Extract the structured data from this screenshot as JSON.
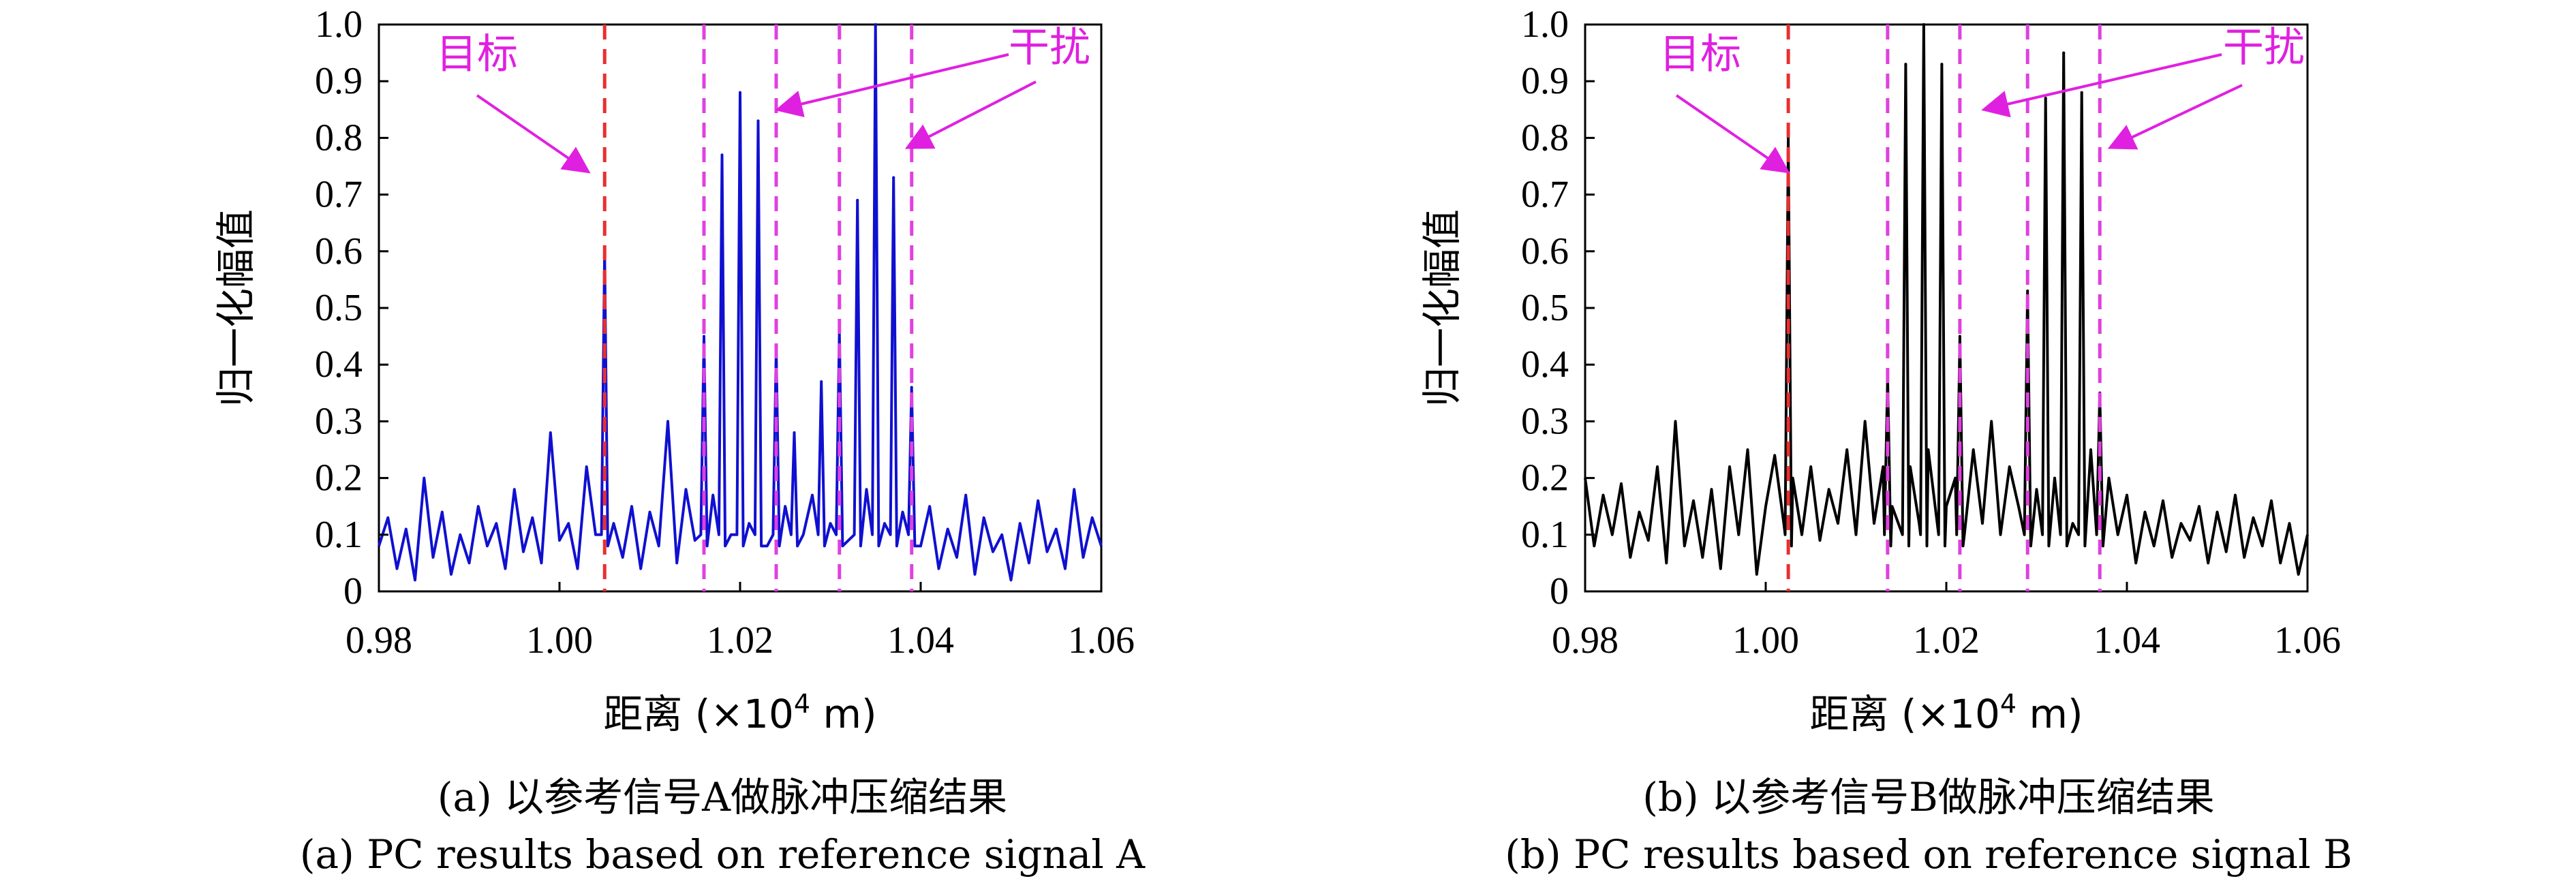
{
  "chart_data": [
    {
      "type": "line",
      "panel_id": "a",
      "caption_cn": "(a) 以参考信号A做脉冲压缩结果",
      "caption_en": "(a) PC results based on reference signal A",
      "xlabel_main": "距离 (×10",
      "xlabel_exp": "4",
      "xlabel_unit": " m)",
      "ylabel": "归一化幅值",
      "xlim": [
        0.98,
        1.06
      ],
      "ylim": [
        0,
        1.0
      ],
      "xticks": [
        "0.98",
        "1.00",
        "1.02",
        "1.04",
        "1.06"
      ],
      "yticks": [
        "0",
        "0.1",
        "0.2",
        "0.3",
        "0.4",
        "0.5",
        "0.6",
        "0.7",
        "0.8",
        "0.9",
        "1.0"
      ],
      "series_color": "#1010d0",
      "target_line": 1.005,
      "target_color": "#e83030",
      "jamming_lines": [
        1.016,
        1.024,
        1.031,
        1.039
      ],
      "jamming_color": "#e040e0",
      "annotation_target": "目标",
      "annotation_jamming": "干扰",
      "annotation_color": "#e020e0",
      "peaks": [
        {
          "x": 1.005,
          "y": 0.6
        },
        {
          "x": 1.016,
          "y": 0.45
        },
        {
          "x": 1.018,
          "y": 0.77
        },
        {
          "x": 1.02,
          "y": 0.88
        },
        {
          "x": 1.022,
          "y": 0.83
        },
        {
          "x": 1.024,
          "y": 0.43
        },
        {
          "x": 1.026,
          "y": 0.28
        },
        {
          "x": 1.029,
          "y": 0.37
        },
        {
          "x": 1.031,
          "y": 0.46
        },
        {
          "x": 1.033,
          "y": 0.69
        },
        {
          "x": 1.035,
          "y": 1.0
        },
        {
          "x": 1.037,
          "y": 0.73
        },
        {
          "x": 1.039,
          "y": 0.36
        }
      ],
      "noise_points": [
        [
          0.98,
          0.08
        ],
        [
          0.981,
          0.13
        ],
        [
          0.982,
          0.04
        ],
        [
          0.983,
          0.11
        ],
        [
          0.984,
          0.02
        ],
        [
          0.985,
          0.2
        ],
        [
          0.986,
          0.06
        ],
        [
          0.987,
          0.14
        ],
        [
          0.988,
          0.03
        ],
        [
          0.989,
          0.1
        ],
        [
          0.99,
          0.05
        ],
        [
          0.991,
          0.15
        ],
        [
          0.992,
          0.08
        ],
        [
          0.993,
          0.12
        ],
        [
          0.994,
          0.04
        ],
        [
          0.995,
          0.18
        ],
        [
          0.996,
          0.07
        ],
        [
          0.997,
          0.13
        ],
        [
          0.998,
          0.05
        ],
        [
          0.999,
          0.28
        ],
        [
          1.0,
          0.09
        ],
        [
          1.001,
          0.12
        ],
        [
          1.002,
          0.04
        ],
        [
          1.003,
          0.22
        ],
        [
          1.004,
          0.1
        ],
        [
          1.006,
          0.12
        ],
        [
          1.007,
          0.06
        ],
        [
          1.008,
          0.15
        ],
        [
          1.009,
          0.04
        ],
        [
          1.01,
          0.14
        ],
        [
          1.011,
          0.08
        ],
        [
          1.012,
          0.3
        ],
        [
          1.013,
          0.05
        ],
        [
          1.014,
          0.18
        ],
        [
          1.015,
          0.09
        ],
        [
          1.017,
          0.17
        ],
        [
          1.019,
          0.1
        ],
        [
          1.021,
          0.12
        ],
        [
          1.023,
          0.08
        ],
        [
          1.025,
          0.15
        ],
        [
          1.027,
          0.1
        ],
        [
          1.028,
          0.17
        ],
        [
          1.03,
          0.12
        ],
        [
          1.032,
          0.09
        ],
        [
          1.034,
          0.18
        ],
        [
          1.036,
          0.12
        ],
        [
          1.038,
          0.14
        ],
        [
          1.04,
          0.08
        ],
        [
          1.041,
          0.15
        ],
        [
          1.042,
          0.04
        ],
        [
          1.043,
          0.11
        ],
        [
          1.044,
          0.06
        ],
        [
          1.045,
          0.17
        ],
        [
          1.046,
          0.03
        ],
        [
          1.047,
          0.13
        ],
        [
          1.048,
          0.07
        ],
        [
          1.049,
          0.1
        ],
        [
          1.05,
          0.02
        ],
        [
          1.051,
          0.12
        ],
        [
          1.052,
          0.05
        ],
        [
          1.053,
          0.16
        ],
        [
          1.054,
          0.07
        ],
        [
          1.055,
          0.11
        ],
        [
          1.056,
          0.04
        ],
        [
          1.057,
          0.18
        ],
        [
          1.058,
          0.06
        ],
        [
          1.059,
          0.13
        ],
        [
          1.06,
          0.08
        ]
      ]
    },
    {
      "type": "line",
      "panel_id": "b",
      "caption_cn": "(b) 以参考信号B做脉冲压缩结果",
      "caption_en": "(b) PC results based on reference signal B",
      "xlabel_main": "距离 (×10",
      "xlabel_exp": "4",
      "xlabel_unit": " m)",
      "ylabel": "归一化幅值",
      "xlim": [
        0.98,
        1.06
      ],
      "ylim": [
        0,
        1.0
      ],
      "xticks": [
        "0.98",
        "1.00",
        "1.02",
        "1.04",
        "1.06"
      ],
      "yticks": [
        "0",
        "0.1",
        "0.2",
        "0.3",
        "0.4",
        "0.5",
        "0.6",
        "0.7",
        "0.8",
        "0.9",
        "1.0"
      ],
      "series_color": "#000000",
      "target_line": 1.0025,
      "target_color": "#e83030",
      "jamming_lines": [
        1.0135,
        1.0215,
        1.029,
        1.037
      ],
      "jamming_color": "#e040e0",
      "annotation_target": "目标",
      "annotation_jamming": "干扰",
      "annotation_color": "#e020e0",
      "peaks": [
        {
          "x": 1.0025,
          "y": 0.8
        },
        {
          "x": 1.0135,
          "y": 0.38
        },
        {
          "x": 1.0155,
          "y": 0.93
        },
        {
          "x": 1.0175,
          "y": 1.0
        },
        {
          "x": 1.0195,
          "y": 0.93
        },
        {
          "x": 1.0215,
          "y": 0.45
        },
        {
          "x": 1.029,
          "y": 0.53
        },
        {
          "x": 1.031,
          "y": 0.87
        },
        {
          "x": 1.033,
          "y": 0.95
        },
        {
          "x": 1.035,
          "y": 0.88
        },
        {
          "x": 1.037,
          "y": 0.35
        }
      ],
      "noise_points": [
        [
          0.98,
          0.2
        ],
        [
          0.981,
          0.08
        ],
        [
          0.982,
          0.17
        ],
        [
          0.983,
          0.1
        ],
        [
          0.984,
          0.19
        ],
        [
          0.985,
          0.06
        ],
        [
          0.986,
          0.14
        ],
        [
          0.987,
          0.09
        ],
        [
          0.988,
          0.22
        ],
        [
          0.989,
          0.05
        ],
        [
          0.99,
          0.3
        ],
        [
          0.991,
          0.08
        ],
        [
          0.992,
          0.16
        ],
        [
          0.993,
          0.06
        ],
        [
          0.994,
          0.18
        ],
        [
          0.995,
          0.04
        ],
        [
          0.996,
          0.22
        ],
        [
          0.997,
          0.1
        ],
        [
          0.998,
          0.25
        ],
        [
          0.999,
          0.03
        ],
        [
          1.0,
          0.15
        ],
        [
          1.001,
          0.24
        ],
        [
          1.002,
          0.12
        ],
        [
          1.003,
          0.2
        ],
        [
          1.004,
          0.1
        ],
        [
          1.005,
          0.22
        ],
        [
          1.006,
          0.09
        ],
        [
          1.007,
          0.18
        ],
        [
          1.008,
          0.12
        ],
        [
          1.009,
          0.25
        ],
        [
          1.01,
          0.1
        ],
        [
          1.011,
          0.3
        ],
        [
          1.012,
          0.12
        ],
        [
          1.013,
          0.22
        ],
        [
          1.014,
          0.15
        ],
        [
          1.016,
          0.22
        ],
        [
          1.017,
          0.12
        ],
        [
          1.018,
          0.25
        ],
        [
          1.02,
          0.15
        ],
        [
          1.021,
          0.2
        ],
        [
          1.022,
          0.1
        ],
        [
          1.023,
          0.25
        ],
        [
          1.024,
          0.12
        ],
        [
          1.025,
          0.3
        ],
        [
          1.026,
          0.1
        ],
        [
          1.027,
          0.22
        ],
        [
          1.028,
          0.15
        ],
        [
          1.03,
          0.18
        ],
        [
          1.032,
          0.2
        ],
        [
          1.034,
          0.12
        ],
        [
          1.036,
          0.25
        ],
        [
          1.038,
          0.2
        ],
        [
          1.039,
          0.1
        ],
        [
          1.04,
          0.17
        ],
        [
          1.041,
          0.05
        ],
        [
          1.042,
          0.14
        ],
        [
          1.043,
          0.08
        ],
        [
          1.044,
          0.16
        ],
        [
          1.045,
          0.06
        ],
        [
          1.046,
          0.12
        ],
        [
          1.047,
          0.09
        ],
        [
          1.048,
          0.15
        ],
        [
          1.049,
          0.05
        ],
        [
          1.05,
          0.14
        ],
        [
          1.051,
          0.07
        ],
        [
          1.052,
          0.17
        ],
        [
          1.053,
          0.06
        ],
        [
          1.054,
          0.13
        ],
        [
          1.055,
          0.08
        ],
        [
          1.056,
          0.16
        ],
        [
          1.057,
          0.05
        ],
        [
          1.058,
          0.12
        ],
        [
          1.059,
          0.03
        ],
        [
          1.06,
          0.1
        ]
      ]
    }
  ]
}
